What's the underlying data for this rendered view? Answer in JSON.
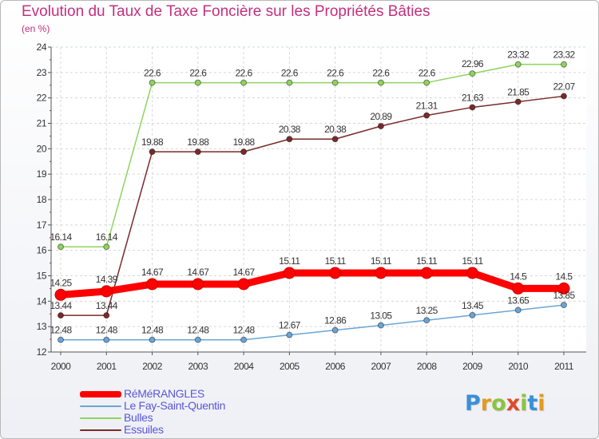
{
  "title": "Evolution du Taux de Taxe Foncière sur les Propriétés Bâties",
  "unit_label": "(en %)",
  "logo": {
    "letters": [
      "P",
      "r",
      "o",
      "x",
      "i",
      "t",
      "i"
    ],
    "colors": [
      "#3b8fd8",
      "#e39a1f",
      "#8cc43f",
      "#e04a2a",
      "#8cc43f",
      "#3b8fd8",
      "#e39a1f"
    ]
  },
  "chart_data": {
    "type": "line",
    "title": "Evolution du Taux de Taxe Foncière sur les Propriétés Bâties",
    "ylabel": "(en %)",
    "xlabel": "",
    "ylim": [
      12,
      24
    ],
    "yticks": [
      "12",
      "13",
      "14",
      "15",
      "16",
      "17",
      "18",
      "19",
      "20",
      "21",
      "22",
      "23",
      "24"
    ],
    "categories": [
      "2000",
      "2001",
      "2002",
      "2003",
      "2004",
      "2005",
      "2006",
      "2007",
      "2008",
      "2009",
      "2010",
      "2011"
    ],
    "series": [
      {
        "name": "RéMéRANGLES",
        "color": "#ff0000",
        "values": [
          14.25,
          14.39,
          14.67,
          14.67,
          14.67,
          15.11,
          15.11,
          15.11,
          15.11,
          15.11,
          14.5,
          14.5
        ],
        "labels": [
          "14.25",
          "14.39",
          "14.67",
          "14.67",
          "14.67",
          "15.11",
          "15.11",
          "15.11",
          "15.11",
          "15.11",
          "14.5",
          "14.5"
        ]
      },
      {
        "name": "Le Fay-Saint-Quentin",
        "color": "#6aa5d6",
        "values": [
          12.48,
          12.48,
          12.48,
          12.48,
          12.48,
          12.67,
          12.86,
          13.05,
          13.25,
          13.45,
          13.65,
          13.85
        ],
        "labels": [
          "12.48",
          "12.48",
          "12.48",
          "12.48",
          "12.48",
          "12.67",
          "12.86",
          "13.05",
          "13.25",
          "13.45",
          "13.65",
          "13.85"
        ]
      },
      {
        "name": "Bulles",
        "color": "#8fd35f",
        "values": [
          16.14,
          16.14,
          22.6,
          22.6,
          22.6,
          22.6,
          22.6,
          22.6,
          22.6,
          22.96,
          23.32,
          23.32
        ],
        "labels": [
          "16.14",
          "16.14",
          "22.6",
          "22.6",
          "22.6",
          "22.6",
          "22.6",
          "22.6",
          "22.6",
          "22.96",
          "23.32",
          "23.32"
        ]
      },
      {
        "name": "Essuiles",
        "color": "#7a2a2a",
        "values": [
          13.44,
          13.44,
          19.88,
          19.88,
          19.88,
          20.38,
          20.38,
          20.89,
          21.31,
          21.63,
          21.85,
          22.07
        ],
        "labels": [
          "13.44",
          "13.44",
          "19.88",
          "19.88",
          "19.88",
          "20.38",
          "20.38",
          "20.89",
          "21.31",
          "21.63",
          "21.85",
          "22.07"
        ]
      }
    ]
  }
}
